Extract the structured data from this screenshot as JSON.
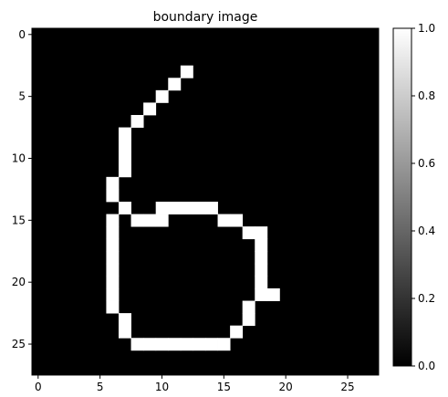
{
  "chart_data": {
    "type": "heatmap",
    "title": "boundary image",
    "grid": false,
    "colormap": "gray",
    "rows": 28,
    "cols": 28,
    "x_ticks": [
      0,
      5,
      10,
      15,
      20,
      25
    ],
    "y_ticks": [
      0,
      5,
      10,
      15,
      20,
      25
    ],
    "colorbar": {
      "range": [
        0.0,
        1.0
      ],
      "ticks": [
        "0.0",
        "0.2",
        "0.4",
        "0.6",
        "0.8",
        "1.0"
      ]
    },
    "white_pixels": [
      [
        3,
        12
      ],
      [
        4,
        11
      ],
      [
        5,
        10
      ],
      [
        6,
        9
      ],
      [
        7,
        8
      ],
      [
        8,
        7
      ],
      [
        9,
        7
      ],
      [
        10,
        7
      ],
      [
        11,
        7
      ],
      [
        12,
        6
      ],
      [
        13,
        6
      ],
      [
        14,
        7
      ],
      [
        14,
        10
      ],
      [
        14,
        11
      ],
      [
        14,
        12
      ],
      [
        14,
        13
      ],
      [
        14,
        14
      ],
      [
        15,
        6
      ],
      [
        15,
        8
      ],
      [
        15,
        9
      ],
      [
        15,
        10
      ],
      [
        15,
        15
      ],
      [
        15,
        16
      ],
      [
        16,
        6
      ],
      [
        16,
        17
      ],
      [
        16,
        18
      ],
      [
        17,
        6
      ],
      [
        17,
        18
      ],
      [
        18,
        6
      ],
      [
        18,
        18
      ],
      [
        19,
        6
      ],
      [
        19,
        18
      ],
      [
        20,
        6
      ],
      [
        20,
        18
      ],
      [
        21,
        6
      ],
      [
        21,
        18
      ],
      [
        21,
        19
      ],
      [
        22,
        6
      ],
      [
        22,
        17
      ],
      [
        23,
        7
      ],
      [
        23,
        17
      ],
      [
        24,
        7
      ],
      [
        24,
        16
      ],
      [
        25,
        8
      ],
      [
        25,
        9
      ],
      [
        25,
        10
      ],
      [
        25,
        11
      ],
      [
        25,
        12
      ],
      [
        25,
        13
      ],
      [
        25,
        14
      ],
      [
        25,
        15
      ]
    ]
  }
}
